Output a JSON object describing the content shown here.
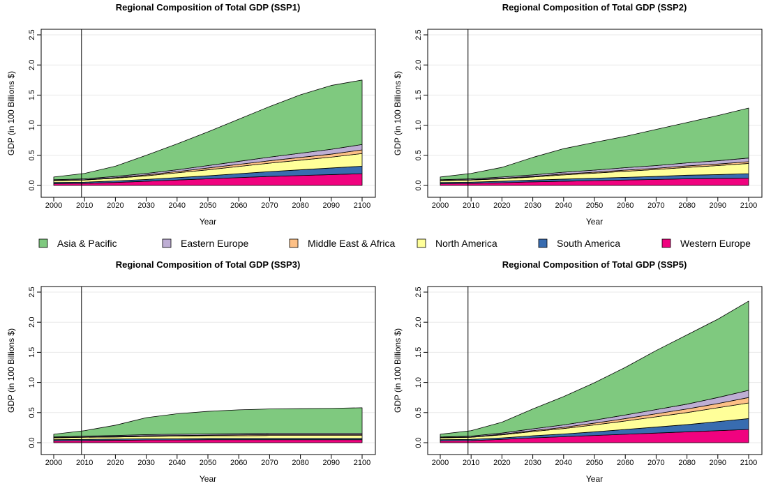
{
  "legend": {
    "entries": [
      {
        "label": "Asia & Pacific",
        "color": "#7fc97f"
      },
      {
        "label": "Eastern Europe",
        "color": "#beaed4"
      },
      {
        "label": "Middle East & Africa",
        "color": "#fdc086"
      },
      {
        "label": "North America",
        "color": "#ffff99"
      },
      {
        "label": "South America",
        "color": "#386cb0"
      },
      {
        "label": "Western Europe",
        "color": "#f0027f"
      }
    ]
  },
  "chart_data": [
    {
      "type": "area",
      "title": "Regional Composition of Total GDP (SSP1)",
      "xlabel": "Year",
      "ylabel": "GDP (in 100 Billions $)",
      "x": [
        2000,
        2010,
        2020,
        2030,
        2040,
        2050,
        2060,
        2070,
        2080,
        2090,
        2100
      ],
      "xticks": [
        "2000",
        "2010",
        "2020",
        "2030",
        "2040",
        "2050",
        "2060",
        "2070",
        "2080",
        "2090",
        "2100"
      ],
      "yticks": [
        "0.0",
        "0.5",
        "1.0",
        "1.5",
        "2.0",
        "2.5"
      ],
      "xlim": [
        2000,
        2100
      ],
      "ylim": [
        0,
        2.5
      ],
      "vline": 2009,
      "stacked": true,
      "series": [
        {
          "name": "Western Europe",
          "values": [
            0.03,
            0.035,
            0.05,
            0.07,
            0.09,
            0.11,
            0.13,
            0.15,
            0.165,
            0.18,
            0.195
          ]
        },
        {
          "name": "South America",
          "values": [
            0.02,
            0.02,
            0.025,
            0.03,
            0.04,
            0.05,
            0.065,
            0.08,
            0.095,
            0.11,
            0.125
          ]
        },
        {
          "name": "North America",
          "values": [
            0.03,
            0.035,
            0.045,
            0.06,
            0.08,
            0.1,
            0.12,
            0.14,
            0.16,
            0.18,
            0.21
          ]
        },
        {
          "name": "Middle East & Africa",
          "values": [
            0.005,
            0.005,
            0.01,
            0.015,
            0.02,
            0.03,
            0.035,
            0.04,
            0.045,
            0.05,
            0.06
          ]
        },
        {
          "name": "Eastern Europe",
          "values": [
            0.01,
            0.015,
            0.02,
            0.025,
            0.03,
            0.04,
            0.05,
            0.06,
            0.07,
            0.08,
            0.09
          ]
        },
        {
          "name": "Asia & Pacific",
          "values": [
            0.045,
            0.09,
            0.17,
            0.3,
            0.43,
            0.56,
            0.7,
            0.84,
            0.97,
            1.06,
            1.07
          ]
        }
      ]
    },
    {
      "type": "area",
      "title": "Regional Composition of Total GDP (SSP2)",
      "xlabel": "Year",
      "ylabel": "GDP (in 100 Billions $)",
      "x": [
        2000,
        2010,
        2020,
        2030,
        2040,
        2050,
        2060,
        2070,
        2080,
        2090,
        2100
      ],
      "xticks": [
        "2000",
        "2010",
        "2020",
        "2030",
        "2040",
        "2050",
        "2060",
        "2070",
        "2080",
        "2090",
        "2100"
      ],
      "yticks": [
        "0.0",
        "0.5",
        "1.0",
        "1.5",
        "2.0",
        "2.5"
      ],
      "xlim": [
        2000,
        2100
      ],
      "ylim": [
        0,
        2.5
      ],
      "vline": 2009,
      "stacked": true,
      "series": [
        {
          "name": "Western Europe",
          "values": [
            0.03,
            0.035,
            0.045,
            0.06,
            0.07,
            0.08,
            0.09,
            0.1,
            0.11,
            0.115,
            0.12
          ]
        },
        {
          "name": "South America",
          "values": [
            0.02,
            0.02,
            0.025,
            0.03,
            0.035,
            0.04,
            0.045,
            0.05,
            0.06,
            0.065,
            0.075
          ]
        },
        {
          "name": "North America",
          "values": [
            0.03,
            0.035,
            0.04,
            0.05,
            0.07,
            0.085,
            0.1,
            0.115,
            0.13,
            0.15,
            0.17
          ]
        },
        {
          "name": "Middle East & Africa",
          "values": [
            0.005,
            0.005,
            0.01,
            0.01,
            0.015,
            0.015,
            0.02,
            0.02,
            0.025,
            0.025,
            0.03
          ]
        },
        {
          "name": "Eastern Europe",
          "values": [
            0.01,
            0.015,
            0.02,
            0.025,
            0.03,
            0.035,
            0.04,
            0.045,
            0.05,
            0.055,
            0.06
          ]
        },
        {
          "name": "Asia & Pacific",
          "values": [
            0.045,
            0.09,
            0.16,
            0.29,
            0.39,
            0.46,
            0.52,
            0.6,
            0.67,
            0.75,
            0.83
          ]
        }
      ]
    },
    {
      "type": "area",
      "title": "Regional Composition of Total GDP (SSP3)",
      "xlabel": "Year",
      "ylabel": "GDP (in 100 Billions $)",
      "x": [
        2000,
        2010,
        2020,
        2030,
        2040,
        2050,
        2060,
        2070,
        2080,
        2090,
        2100
      ],
      "xticks": [
        "2000",
        "2010",
        "2020",
        "2030",
        "2040",
        "2050",
        "2060",
        "2070",
        "2080",
        "2090",
        "2100"
      ],
      "yticks": [
        "0.0",
        "0.5",
        "1.0",
        "1.5",
        "2.0",
        "2.5"
      ],
      "xlim": [
        2000,
        2100
      ],
      "ylim": [
        0,
        2.5
      ],
      "vline": 2009,
      "stacked": true,
      "series": [
        {
          "name": "Western Europe",
          "values": [
            0.03,
            0.035,
            0.04,
            0.045,
            0.045,
            0.05,
            0.05,
            0.05,
            0.05,
            0.05,
            0.05
          ]
        },
        {
          "name": "South America",
          "values": [
            0.02,
            0.02,
            0.02,
            0.02,
            0.02,
            0.02,
            0.02,
            0.02,
            0.02,
            0.02,
            0.02
          ]
        },
        {
          "name": "North America",
          "values": [
            0.03,
            0.035,
            0.035,
            0.04,
            0.045,
            0.045,
            0.045,
            0.05,
            0.05,
            0.05,
            0.05
          ]
        },
        {
          "name": "Middle East & Africa",
          "values": [
            0.005,
            0.005,
            0.01,
            0.01,
            0.01,
            0.01,
            0.015,
            0.015,
            0.015,
            0.015,
            0.015
          ]
        },
        {
          "name": "Eastern Europe",
          "values": [
            0.01,
            0.015,
            0.015,
            0.02,
            0.02,
            0.02,
            0.02,
            0.02,
            0.02,
            0.02,
            0.02
          ]
        },
        {
          "name": "Asia & Pacific",
          "values": [
            0.045,
            0.09,
            0.17,
            0.28,
            0.34,
            0.375,
            0.395,
            0.405,
            0.41,
            0.415,
            0.425
          ]
        }
      ]
    },
    {
      "type": "area",
      "title": "Regional Composition of Total GDP (SSP5)",
      "xlabel": "Year",
      "ylabel": "GDP (in 100 Billions $)",
      "x": [
        2000,
        2010,
        2020,
        2030,
        2040,
        2050,
        2060,
        2070,
        2080,
        2090,
        2100
      ],
      "xticks": [
        "2000",
        "2010",
        "2020",
        "2030",
        "2040",
        "2050",
        "2060",
        "2070",
        "2080",
        "2090",
        "2100"
      ],
      "yticks": [
        "0.0",
        "0.5",
        "1.0",
        "1.5",
        "2.0",
        "2.5"
      ],
      "xlim": [
        2000,
        2100
      ],
      "ylim": [
        0,
        2.5
      ],
      "vline": 2009,
      "stacked": true,
      "series": [
        {
          "name": "Western Europe",
          "values": [
            0.03,
            0.035,
            0.055,
            0.08,
            0.1,
            0.12,
            0.14,
            0.16,
            0.18,
            0.2,
            0.22
          ]
        },
        {
          "name": "South America",
          "values": [
            0.02,
            0.02,
            0.025,
            0.035,
            0.045,
            0.06,
            0.08,
            0.1,
            0.12,
            0.15,
            0.18
          ]
        },
        {
          "name": "North America",
          "values": [
            0.03,
            0.035,
            0.05,
            0.07,
            0.09,
            0.115,
            0.14,
            0.17,
            0.2,
            0.23,
            0.26
          ]
        },
        {
          "name": "Middle East & Africa",
          "values": [
            0.005,
            0.005,
            0.01,
            0.015,
            0.02,
            0.03,
            0.04,
            0.05,
            0.06,
            0.07,
            0.09
          ]
        },
        {
          "name": "Eastern Europe",
          "values": [
            0.01,
            0.015,
            0.02,
            0.03,
            0.04,
            0.05,
            0.06,
            0.07,
            0.08,
            0.1,
            0.12
          ]
        },
        {
          "name": "Asia & Pacific",
          "values": [
            0.045,
            0.09,
            0.18,
            0.33,
            0.47,
            0.62,
            0.79,
            0.98,
            1.15,
            1.3,
            1.48
          ]
        }
      ]
    }
  ]
}
